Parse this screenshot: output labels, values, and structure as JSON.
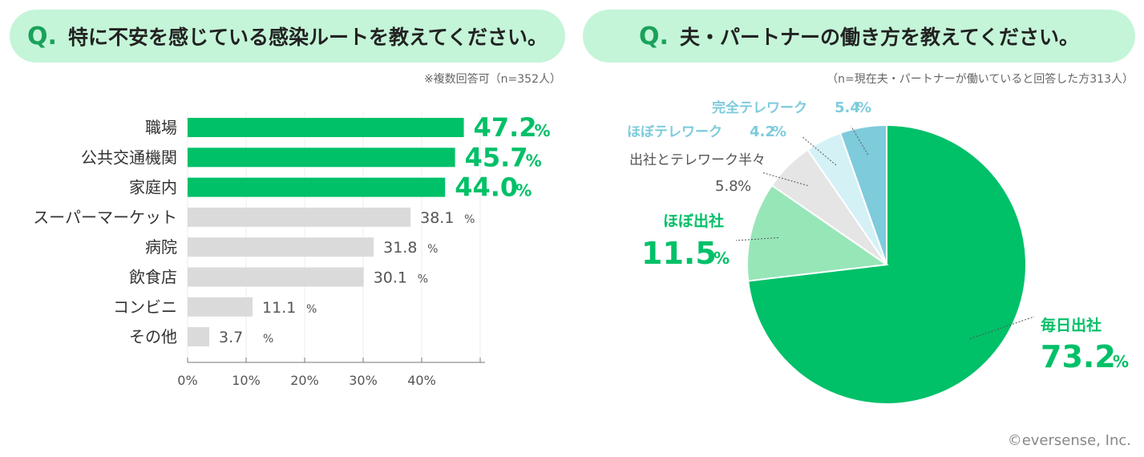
{
  "left_question": {
    "q": "Q.",
    "text": "特に不安を感じている感染ルートを教えてください。",
    "note": "※複数回答可（n=352人）"
  },
  "right_question": {
    "q": "Q.",
    "text": "夫・パートナーの働き方を教えてください。",
    "note": "（n=現在夫・パートナーが働いていると回答した方313人）"
  },
  "colors": {
    "highlight": "#00c068",
    "bar_gray": "#dadada",
    "light_green": "#97e6b8",
    "gray_slice": "#e5e5e5",
    "light_blue": "#d4f1f6",
    "mid_blue": "#7ecbdc"
  },
  "chart_data": [
    {
      "type": "bar",
      "orientation": "horizontal",
      "categories": [
        "職場",
        "公共交通機関",
        "家庭内",
        "スーパーマーケット",
        "病院",
        "飲食店",
        "コンビニ",
        "その他"
      ],
      "values": [
        47.2,
        45.7,
        44.0,
        38.1,
        31.8,
        30.1,
        11.1,
        3.7
      ],
      "value_labels": [
        "47.2",
        "45.7",
        "44.0",
        "38.1",
        "31.8",
        "30.1",
        "11.1",
        "3.7"
      ],
      "highlighted": [
        true,
        true,
        true,
        false,
        false,
        false,
        false,
        false
      ],
      "unit": "%",
      "xlim": [
        0,
        50
      ],
      "xticks": [
        "0%",
        "10%",
        "20%",
        "30%",
        "40%"
      ],
      "title": "特に不安を感じている感染ルートを教えてください。"
    },
    {
      "type": "pie",
      "labels": [
        "毎日出社",
        "ほぼ出社",
        "出社とテレワーク半々",
        "ほぼテレワーク",
        "完全テレワーク"
      ],
      "values": [
        73.2,
        11.5,
        5.8,
        4.2,
        5.4
      ],
      "value_labels": [
        "73.2",
        "11.5",
        "5.8",
        "4.2",
        "5.4"
      ],
      "unit": "%",
      "title": "夫・パートナーの働き方を教えてください。"
    }
  ],
  "copyright": "©eversense, Inc."
}
